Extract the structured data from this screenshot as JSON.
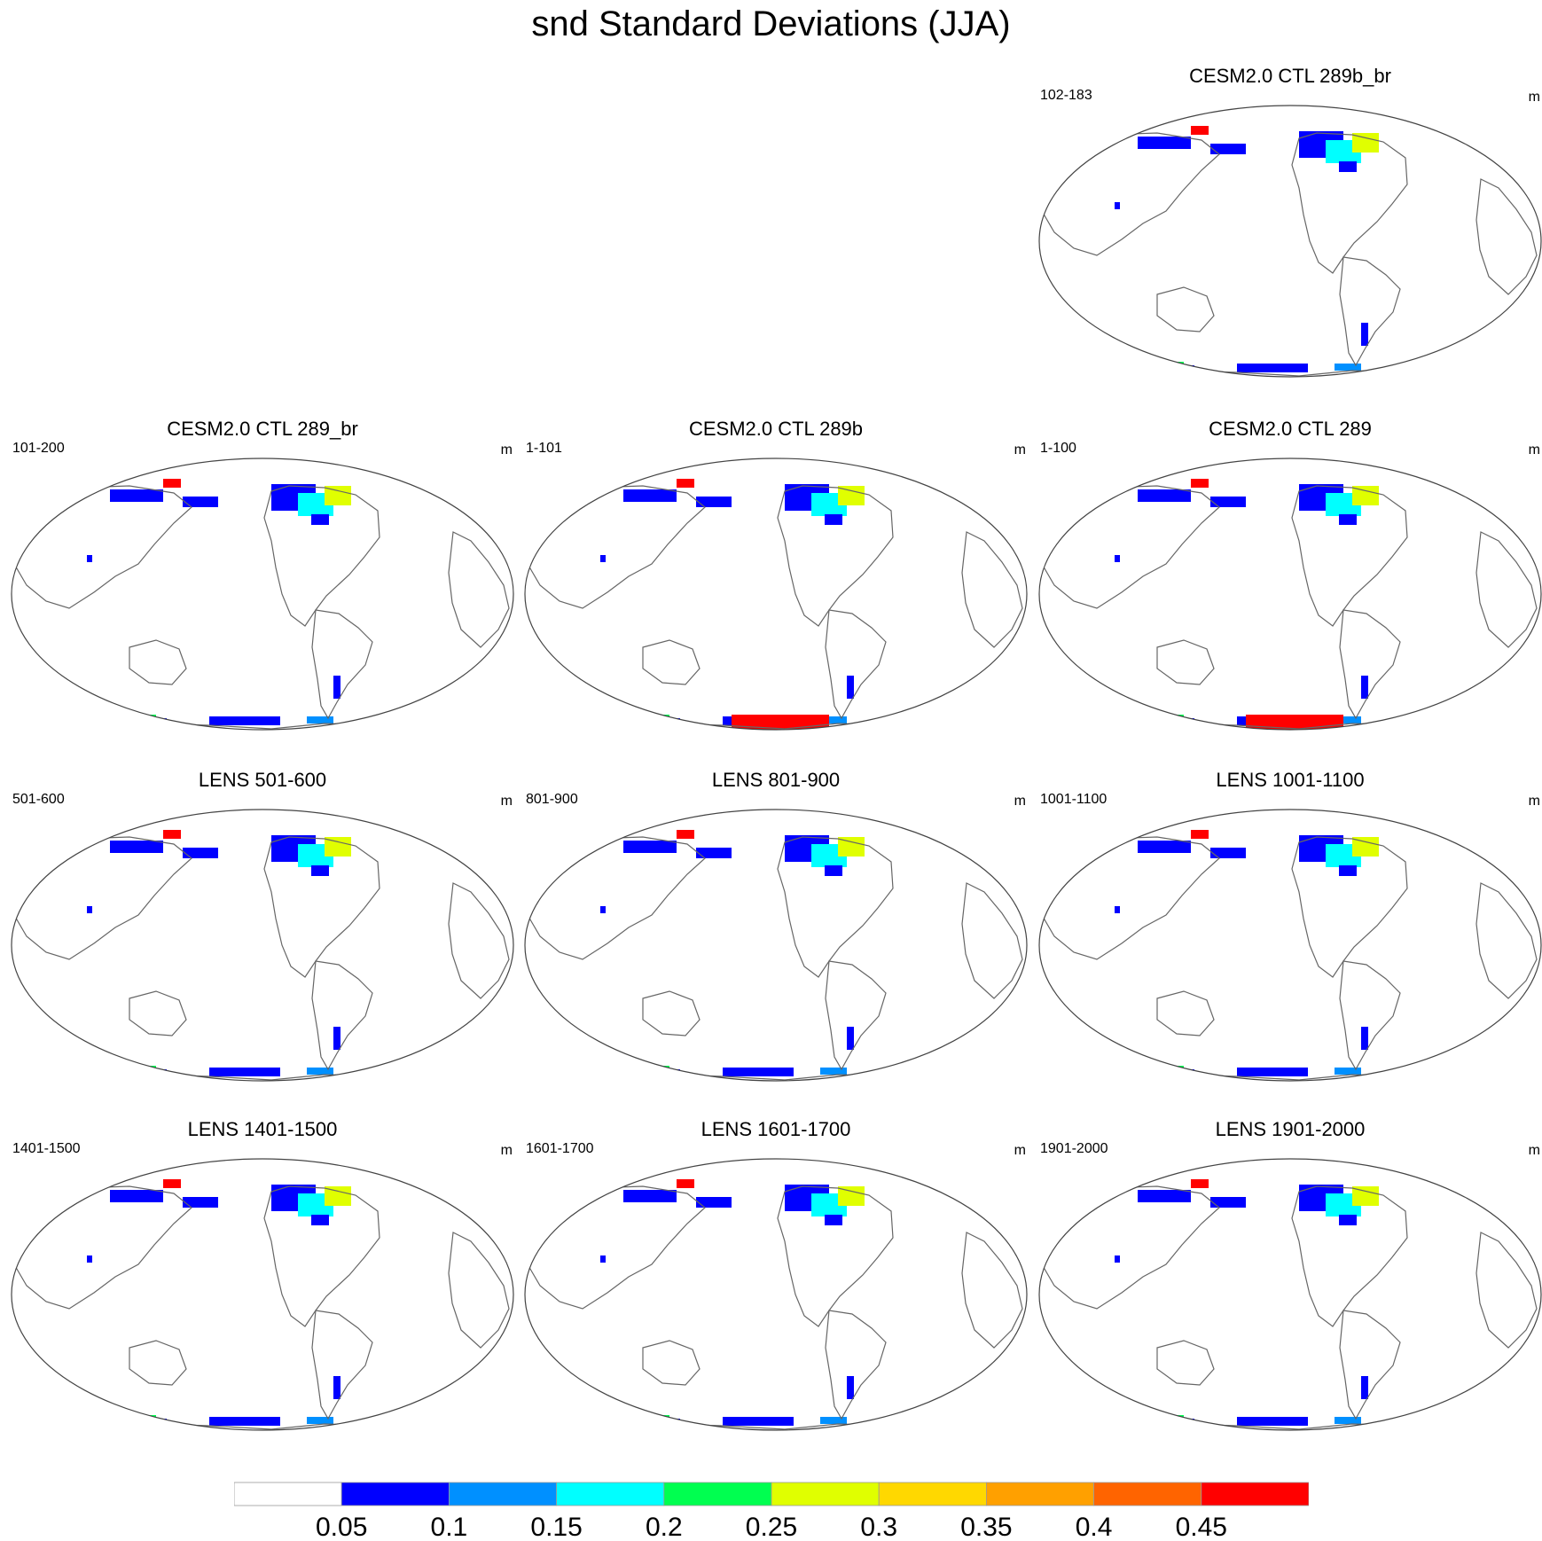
{
  "title": "snd Standard Deviations (JJA)",
  "units_label": "m",
  "panels": [
    {
      "row": 0,
      "col": 2,
      "title": "CESM2.0 CTL 289b_br",
      "years": "102-183",
      "units": "m",
      "antarctic_red": false
    },
    {
      "row": 1,
      "col": 0,
      "title": "CESM2.0 CTL 289_br",
      "years": "101-200",
      "units": "m",
      "antarctic_red": false
    },
    {
      "row": 1,
      "col": 1,
      "title": "CESM2.0 CTL 289b",
      "years": "1-101",
      "units": "m",
      "antarctic_red": true
    },
    {
      "row": 1,
      "col": 2,
      "title": "CESM2.0 CTL 289",
      "years": "1-100",
      "units": "m",
      "antarctic_red": true
    },
    {
      "row": 2,
      "col": 0,
      "title": "LENS 501-600",
      "years": "501-600",
      "units": "m",
      "antarctic_red": false
    },
    {
      "row": 2,
      "col": 1,
      "title": "LENS 801-900",
      "years": "801-900",
      "units": "m",
      "antarctic_red": false
    },
    {
      "row": 2,
      "col": 2,
      "title": "LENS 1001-1100",
      "years": "1001-1100",
      "units": "m",
      "antarctic_red": false
    },
    {
      "row": 3,
      "col": 0,
      "title": "LENS 1401-1500",
      "years": "1401-1500",
      "units": "m",
      "antarctic_red": false
    },
    {
      "row": 3,
      "col": 1,
      "title": "LENS 1601-1700",
      "years": "1601-1700",
      "units": "m",
      "antarctic_red": false
    },
    {
      "row": 3,
      "col": 2,
      "title": "LENS 1901-2000",
      "years": "1901-2000",
      "units": "m",
      "antarctic_red": false
    }
  ],
  "colorbar": {
    "labels": [
      "0.05",
      "0.1",
      "0.15",
      "0.2",
      "0.25",
      "0.3",
      "0.35",
      "0.4",
      "0.45"
    ],
    "colors": [
      "#ffffff",
      "#0000ff",
      "#0090ff",
      "#00ffff",
      "#00ff50",
      "#e0ff00",
      "#ffd800",
      "#ffa000",
      "#ff6400",
      "#ff0000"
    ]
  },
  "colors": {
    "coastline": "#666666",
    "frame": "#444444"
  }
}
